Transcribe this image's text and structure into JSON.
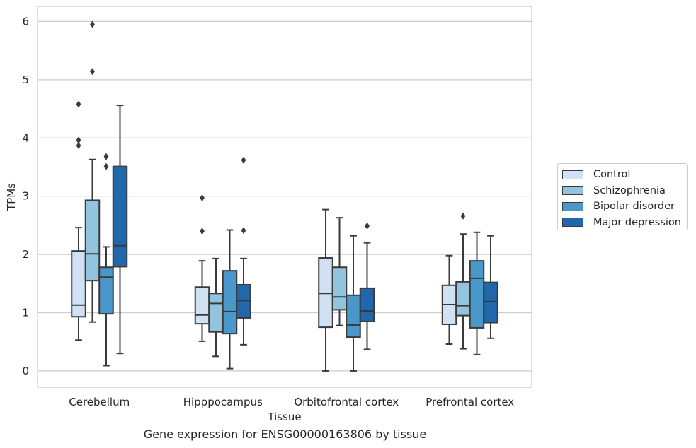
{
  "chart_data": {
    "type": "box",
    "xlabel": "Tissue",
    "ylabel": "TPMs",
    "caption": "Gene expression for ENSG00000163806 by tissue",
    "ylim": [
      -0.28,
      6.26
    ],
    "yticks": [
      0,
      1,
      2,
      3,
      4,
      5,
      6
    ],
    "grid": true,
    "legend_position": "right",
    "categories": [
      "Cerebellum",
      "Hipppocampus",
      "Orbitofrontal cortex",
      "Prefrontal cortex"
    ],
    "series": [
      {
        "name": "Control",
        "color": "#cfe1f2",
        "boxes": [
          {
            "whislo": 0.53,
            "q1": 0.93,
            "med": 1.13,
            "q3": 2.06,
            "whishi": 2.46,
            "fliers": [
              3.87,
              3.96,
              4.58
            ]
          },
          {
            "whislo": 0.51,
            "q1": 0.81,
            "med": 0.96,
            "q3": 1.44,
            "whishi": 1.89,
            "fliers": [
              2.4,
              2.97
            ]
          },
          {
            "whislo": 0.0,
            "q1": 0.75,
            "med": 1.33,
            "q3": 1.94,
            "whishi": 2.77,
            "fliers": []
          },
          {
            "whislo": 0.46,
            "q1": 0.8,
            "med": 1.14,
            "q3": 1.47,
            "whishi": 1.98,
            "fliers": []
          }
        ]
      },
      {
        "name": "Schizophrenia",
        "color": "#93c4de",
        "boxes": [
          {
            "whislo": 0.84,
            "q1": 1.55,
            "med": 2.01,
            "q3": 2.93,
            "whishi": 3.63,
            "fliers": [
              5.14,
              5.95
            ]
          },
          {
            "whislo": 0.25,
            "q1": 0.67,
            "med": 1.16,
            "q3": 1.33,
            "whishi": 1.93,
            "fliers": []
          },
          {
            "whislo": 0.78,
            "q1": 1.05,
            "med": 1.27,
            "q3": 1.78,
            "whishi": 2.63,
            "fliers": []
          },
          {
            "whislo": 0.38,
            "q1": 0.95,
            "med": 1.12,
            "q3": 1.53,
            "whishi": 2.35,
            "fliers": [
              2.66
            ]
          }
        ]
      },
      {
        "name": "Bipolar disorder",
        "color": "#4a98c9",
        "boxes": [
          {
            "whislo": 0.09,
            "q1": 0.98,
            "med": 1.61,
            "q3": 1.78,
            "whishi": 2.13,
            "fliers": [
              3.51,
              3.68
            ]
          },
          {
            "whislo": 0.04,
            "q1": 0.64,
            "med": 1.02,
            "q3": 1.72,
            "whishi": 2.42,
            "fliers": []
          },
          {
            "whislo": 0.0,
            "q1": 0.58,
            "med": 0.79,
            "q3": 1.3,
            "whishi": 2.32,
            "fliers": []
          },
          {
            "whislo": 0.28,
            "q1": 0.74,
            "med": 1.59,
            "q3": 1.89,
            "whishi": 2.38,
            "fliers": []
          }
        ]
      },
      {
        "name": "Major depression",
        "color": "#2167ab",
        "boxes": [
          {
            "whislo": 0.3,
            "q1": 1.79,
            "med": 2.15,
            "q3": 3.51,
            "whishi": 4.56,
            "fliers": []
          },
          {
            "whislo": 0.45,
            "q1": 0.91,
            "med": 1.21,
            "q3": 1.48,
            "whishi": 1.93,
            "fliers": [
              2.41,
              3.62
            ]
          },
          {
            "whislo": 0.37,
            "q1": 0.85,
            "med": 1.03,
            "q3": 1.42,
            "whishi": 2.2,
            "fliers": [
              2.49
            ]
          },
          {
            "whislo": 0.56,
            "q1": 0.83,
            "med": 1.19,
            "q3": 1.52,
            "whishi": 2.32,
            "fliers": []
          }
        ]
      }
    ]
  }
}
